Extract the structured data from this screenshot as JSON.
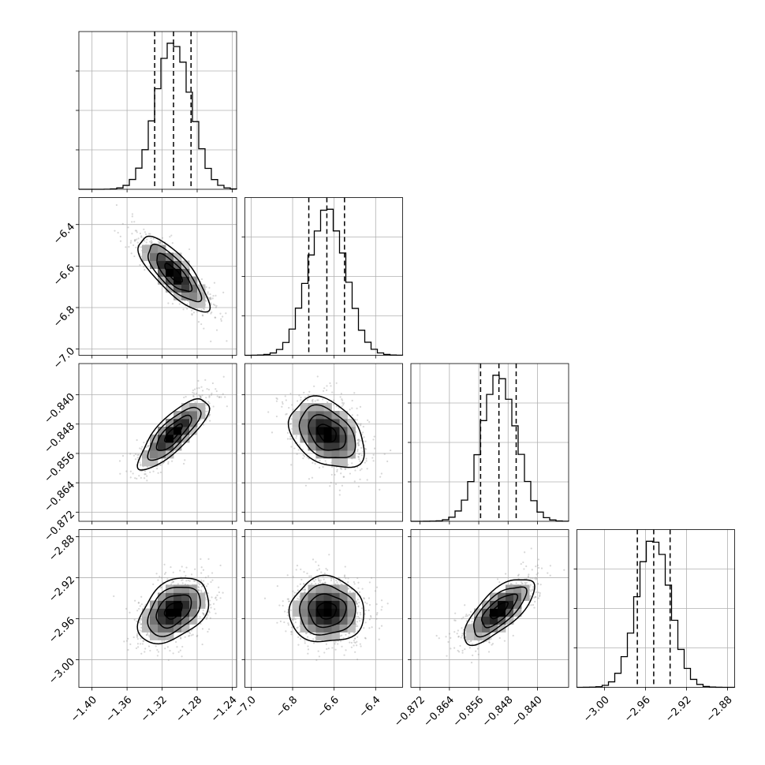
{
  "chart_data": {
    "type": "corner",
    "colors": {
      "ink": "#000000",
      "grid": "#b0b0b0",
      "scatter": "#8c8c8c",
      "bg": "#ffffff"
    },
    "parameters": [
      {
        "range": [
          -1.415,
          -1.235
        ],
        "ticks": [
          -1.4,
          -1.36,
          -1.32,
          -1.28,
          -1.24
        ],
        "ticklabels": [
          "−1.40",
          "−1.36",
          "−1.32",
          "−1.28",
          "−1.24"
        ],
        "mean": -1.307,
        "sd": 0.02,
        "quantiles": [
          -1.3285,
          -1.307,
          -1.287
        ]
      },
      {
        "range": [
          -7.03,
          -6.27
        ],
        "ticks": [
          -7.0,
          -6.8,
          -6.6,
          -6.4
        ],
        "ticklabels": [
          "−7.0",
          "−6.8",
          "−6.6",
          "−6.4"
        ],
        "mean": -6.635,
        "sd": 0.09,
        "quantiles": [
          -6.722,
          -6.635,
          -6.55
        ]
      },
      {
        "range": [
          -0.8745,
          -0.8315
        ],
        "ticks": [
          -0.872,
          -0.864,
          -0.856,
          -0.848,
          -0.84
        ],
        "ticklabels": [
          "−0.872",
          "−0.864",
          "−0.856",
          "−0.848",
          "−0.840"
        ],
        "mean": -0.8505,
        "sd": 0.0048,
        "quantiles": [
          -0.8555,
          -0.8505,
          -0.8458
        ]
      },
      {
        "range": [
          -3.027,
          -2.873
        ],
        "ticks": [
          -3.0,
          -2.96,
          -2.92,
          -2.88
        ],
        "ticklabels": [
          "−3.00",
          "−2.96",
          "−2.92",
          "−2.88"
        ],
        "mean": -2.952,
        "sd": 0.016,
        "quantiles": [
          -2.968,
          -2.952,
          -2.936
        ]
      }
    ],
    "correlations": [
      {
        "i": 1,
        "j": 0,
        "r": -0.78
      },
      {
        "i": 2,
        "j": 0,
        "r": 0.8
      },
      {
        "i": 2,
        "j": 1,
        "r": -0.35
      },
      {
        "i": 3,
        "j": 0,
        "r": 0.4
      },
      {
        "i": 3,
        "j": 1,
        "r": 0.0
      },
      {
        "i": 3,
        "j": 2,
        "r": 0.72
      }
    ],
    "grid": true,
    "contour_levels": [
      0.118,
      0.393,
      0.675,
      0.865
    ],
    "histogram_bins": 25
  }
}
